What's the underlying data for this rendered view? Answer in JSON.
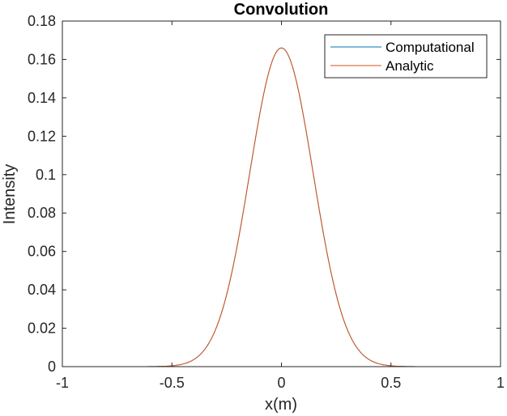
{
  "chart_data": {
    "type": "line",
    "title": "Convolution",
    "xlabel": "x(m)",
    "ylabel": "Intensity",
    "xlim": [
      -1,
      1
    ],
    "ylim": [
      0,
      0.18
    ],
    "xticks": [
      -1,
      -0.5,
      0,
      0.5,
      1
    ],
    "xtick_labels": [
      "-1",
      "-0.5",
      "0",
      "0.5",
      "1"
    ],
    "yticks": [
      0,
      0.02,
      0.04,
      0.06,
      0.08,
      0.1,
      0.12,
      0.14,
      0.16,
      0.18
    ],
    "ytick_labels": [
      "0",
      "0.02",
      "0.04",
      "0.06",
      "0.08",
      "0.1",
      "0.12",
      "0.14",
      "0.16",
      "0.18"
    ],
    "grid": false,
    "legend_position": "top-right",
    "series": [
      {
        "name": "Computational",
        "color": "#0072BD",
        "x": [
          -1,
          -0.6,
          -0.5,
          -0.45,
          -0.4,
          -0.35,
          -0.3,
          -0.25,
          -0.2,
          -0.15,
          -0.1,
          -0.05,
          0,
          0.05,
          0.1,
          0.15,
          0.2,
          0.25,
          0.3,
          0.35,
          0.4,
          0.45,
          0.5,
          0.6,
          1
        ],
        "y": [
          0,
          0,
          0,
          0.003,
          0.008,
          0.018,
          0.034,
          0.055,
          0.08,
          0.106,
          0.131,
          0.152,
          0.166,
          0.152,
          0.131,
          0.106,
          0.08,
          0.055,
          0.034,
          0.018,
          0.008,
          0.003,
          0,
          0,
          0
        ]
      },
      {
        "name": "Analytic",
        "color": "#D95319",
        "x": [
          -1,
          -0.6,
          -0.5,
          -0.45,
          -0.4,
          -0.35,
          -0.3,
          -0.25,
          -0.2,
          -0.15,
          -0.1,
          -0.05,
          0,
          0.05,
          0.1,
          0.15,
          0.2,
          0.25,
          0.3,
          0.35,
          0.4,
          0.45,
          0.5,
          0.6,
          1
        ],
        "y": [
          0,
          0,
          0,
          0.003,
          0.008,
          0.018,
          0.034,
          0.055,
          0.08,
          0.106,
          0.131,
          0.152,
          0.166,
          0.152,
          0.131,
          0.106,
          0.08,
          0.055,
          0.034,
          0.018,
          0.008,
          0.003,
          0,
          0,
          0
        ]
      }
    ]
  }
}
